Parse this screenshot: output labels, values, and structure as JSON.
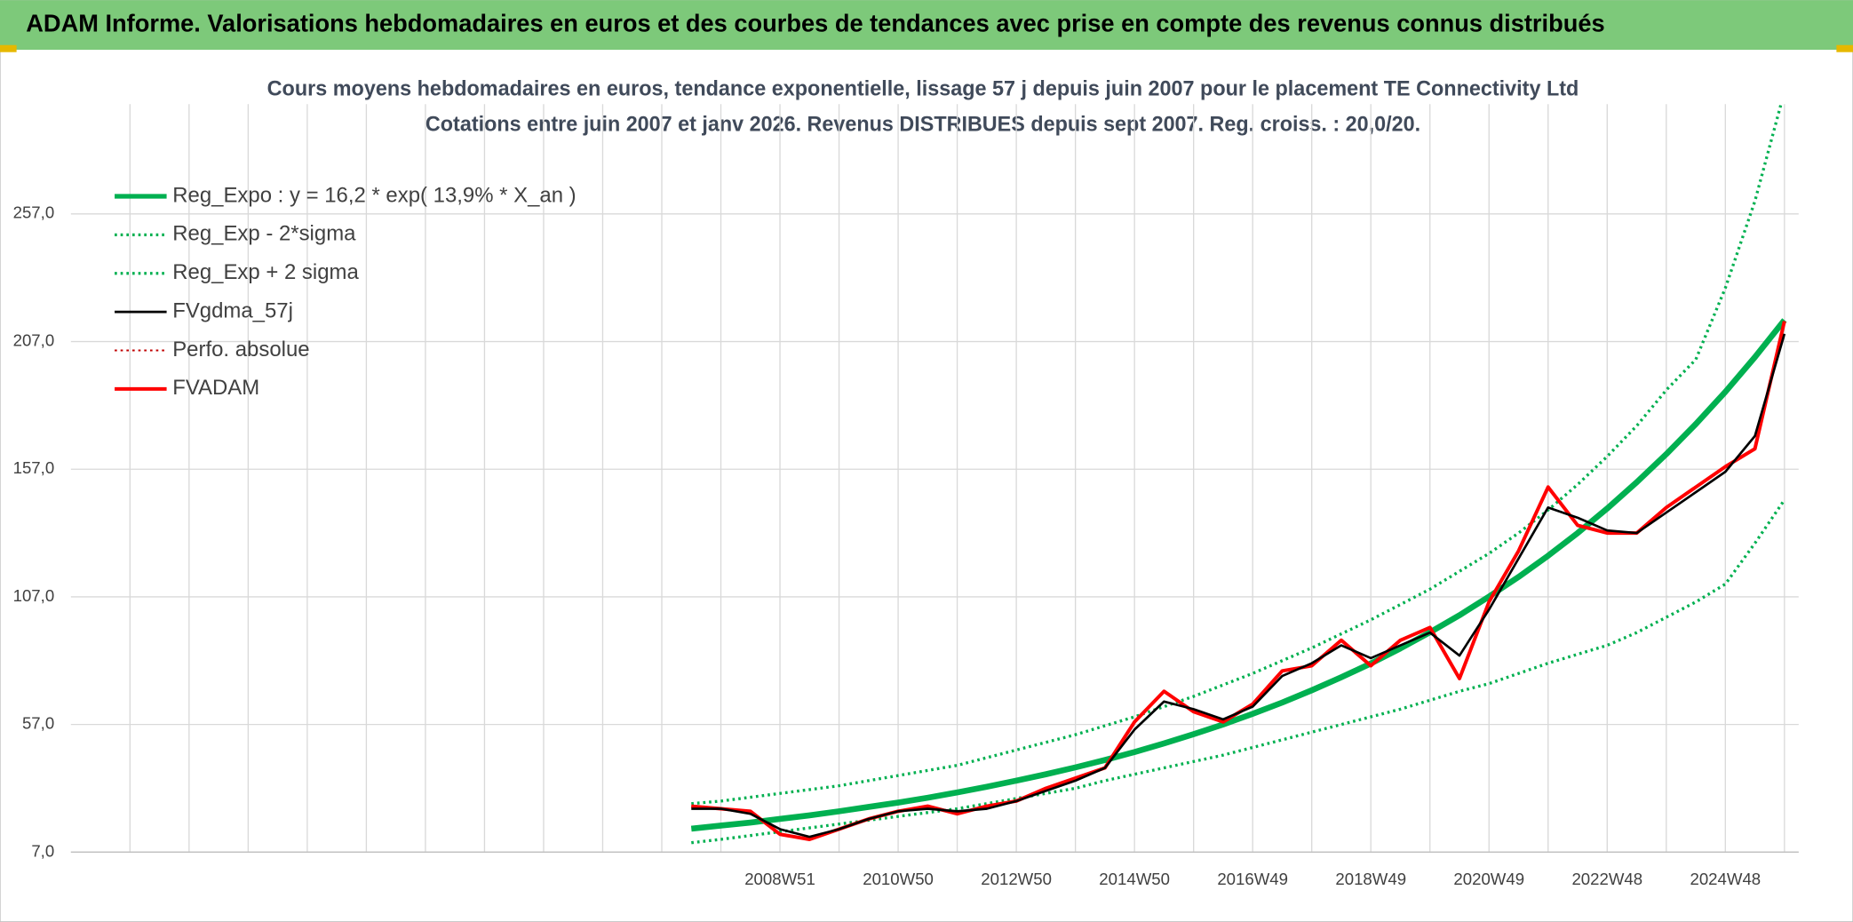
{
  "chart_data": {
    "type": "line",
    "header": "ADAM Informe. Valorisations hebdomadaires en euros et des courbes de tendances avec prise en compte des revenus connus distribués",
    "title": "Cours moyens hebdomadaires en euros, tendance exponentielle, lissage 57 j depuis juin 2007 pour le placement TE Connectivity Ltd",
    "subtitle": "Cotations entre juin 2007 et janv 2026. Revenus DISTRIBUES depuis sept 2007. Reg. croiss. : 20,0/20.",
    "categories": [
      null,
      null,
      null,
      null,
      null,
      null,
      null,
      null,
      null,
      null,
      null,
      null,
      null,
      null,
      null,
      null,
      null,
      null,
      null,
      null,
      null,
      null,
      null,
      null,
      "2008W51",
      null,
      null,
      null,
      "2010W50",
      null,
      null,
      null,
      "2012W50",
      null,
      null,
      null,
      "2014W50",
      null,
      null,
      null,
      "2016W49",
      null,
      null,
      null,
      "2018W49",
      null,
      null,
      null,
      "2020W49",
      null,
      null,
      null,
      "2022W48",
      null,
      null,
      null,
      "2024W48",
      null,
      null
    ],
    "ylim": [
      7,
      300
    ],
    "yticks": [
      {
        "value": 7,
        "label": "7,0"
      },
      {
        "value": 57,
        "label": "57,0"
      },
      {
        "value": 107,
        "label": "107,0"
      },
      {
        "value": 157,
        "label": "157,0"
      },
      {
        "value": 207,
        "label": "207,0"
      },
      {
        "value": 257,
        "label": "257,0"
      }
    ],
    "grid": true,
    "legend": "top-left",
    "series": [
      {
        "name": "Reg_Expo : y = 16,2 * exp( 13,9% *  X_an )",
        "color": "#00b050",
        "style": "solid",
        "values": [
          null,
          null,
          null,
          null,
          null,
          null,
          null,
          null,
          null,
          null,
          null,
          null,
          null,
          null,
          null,
          null,
          null,
          null,
          null,
          null,
          null,
          16.2,
          17.4,
          18.6,
          20.0,
          21.4,
          23.0,
          24.7,
          26.4,
          28.3,
          30.4,
          32.6,
          35.0,
          37.5,
          40.2,
          43.1,
          46.2,
          49.6,
          53.2,
          57.0,
          61.2,
          65.6,
          70.4,
          75.5,
          80.9,
          86.8,
          93.1,
          99.8,
          107.1,
          114.8,
          123.1,
          132.0,
          141.6,
          151.9,
          162.9,
          174.7,
          187.3,
          200.9,
          215.4
        ]
      },
      {
        "name": "Reg_Exp - 2*sigma",
        "color": "#00b050",
        "style": "dotted",
        "values": [
          null,
          null,
          null,
          null,
          null,
          null,
          null,
          null,
          null,
          null,
          null,
          null,
          null,
          null,
          null,
          null,
          null,
          null,
          null,
          null,
          null,
          10.7,
          12,
          13.5,
          15,
          16.5,
          18,
          19.5,
          21,
          22.5,
          24,
          26,
          28,
          30,
          32,
          35,
          37.5,
          40,
          42.5,
          45,
          48,
          51,
          54,
          57,
          60,
          63,
          66.5,
          70,
          73,
          77,
          81,
          84.5,
          88,
          93,
          99,
          105,
          112,
          128,
          145
        ]
      },
      {
        "name": "Reg_Exp + 2 sigma",
        "color": "#00b050",
        "style": "dotted",
        "values": [
          null,
          null,
          null,
          null,
          null,
          null,
          null,
          null,
          null,
          null,
          null,
          null,
          null,
          null,
          null,
          null,
          null,
          null,
          null,
          null,
          null,
          26,
          27,
          28.5,
          30,
          31.5,
          33,
          35,
          37,
          39,
          41,
          44,
          47,
          50,
          53,
          56.5,
          60,
          64,
          68,
          72.5,
          77,
          82,
          87,
          92.5,
          98,
          104,
          110,
          117,
          124,
          132,
          141,
          151,
          162,
          174,
          188,
          200,
          228,
          262,
          305
        ]
      },
      {
        "name": "FVgdma_57j",
        "color": "#000000",
        "style": "solid",
        "values": [
          null,
          null,
          null,
          null,
          null,
          null,
          null,
          null,
          null,
          null,
          null,
          null,
          null,
          null,
          null,
          null,
          null,
          null,
          null,
          null,
          null,
          24,
          24,
          22,
          16,
          13,
          16,
          20,
          23,
          24,
          23,
          24,
          27,
          31,
          35,
          40,
          55,
          66,
          63,
          59,
          64,
          76,
          81,
          88,
          83,
          88,
          93,
          84,
          102,
          122,
          142,
          138,
          133,
          132,
          140,
          148,
          156,
          170,
          210
        ]
      },
      {
        "name": "Perfo. absolue",
        "color": "#c00000",
        "style": "dotted",
        "values": [
          null,
          null,
          null,
          null,
          null,
          null,
          null,
          null,
          null,
          null,
          null,
          null,
          null,
          null,
          null,
          null,
          null,
          null,
          null,
          null,
          null,
          25,
          24,
          23,
          14,
          12,
          16,
          20,
          23,
          25,
          22,
          25,
          27,
          32,
          36,
          40,
          58,
          70,
          62,
          58,
          65,
          78,
          80,
          90,
          80,
          90,
          95,
          75,
          105,
          125,
          150,
          135,
          132,
          132,
          142,
          150,
          158,
          165,
          215
        ]
      },
      {
        "name": "FVADAM",
        "color": "#ff0000",
        "style": "solid",
        "values": [
          null,
          null,
          null,
          null,
          null,
          null,
          null,
          null,
          null,
          null,
          null,
          null,
          null,
          null,
          null,
          null,
          null,
          null,
          null,
          null,
          null,
          25,
          24,
          23,
          14,
          12,
          16,
          20,
          23,
          25,
          22,
          25,
          27,
          32,
          36,
          40,
          58,
          70,
          62,
          58,
          65,
          78,
          80,
          90,
          80,
          90,
          95,
          75,
          105,
          125,
          150,
          135,
          132,
          132,
          142,
          150,
          158,
          165,
          215
        ]
      }
    ]
  }
}
